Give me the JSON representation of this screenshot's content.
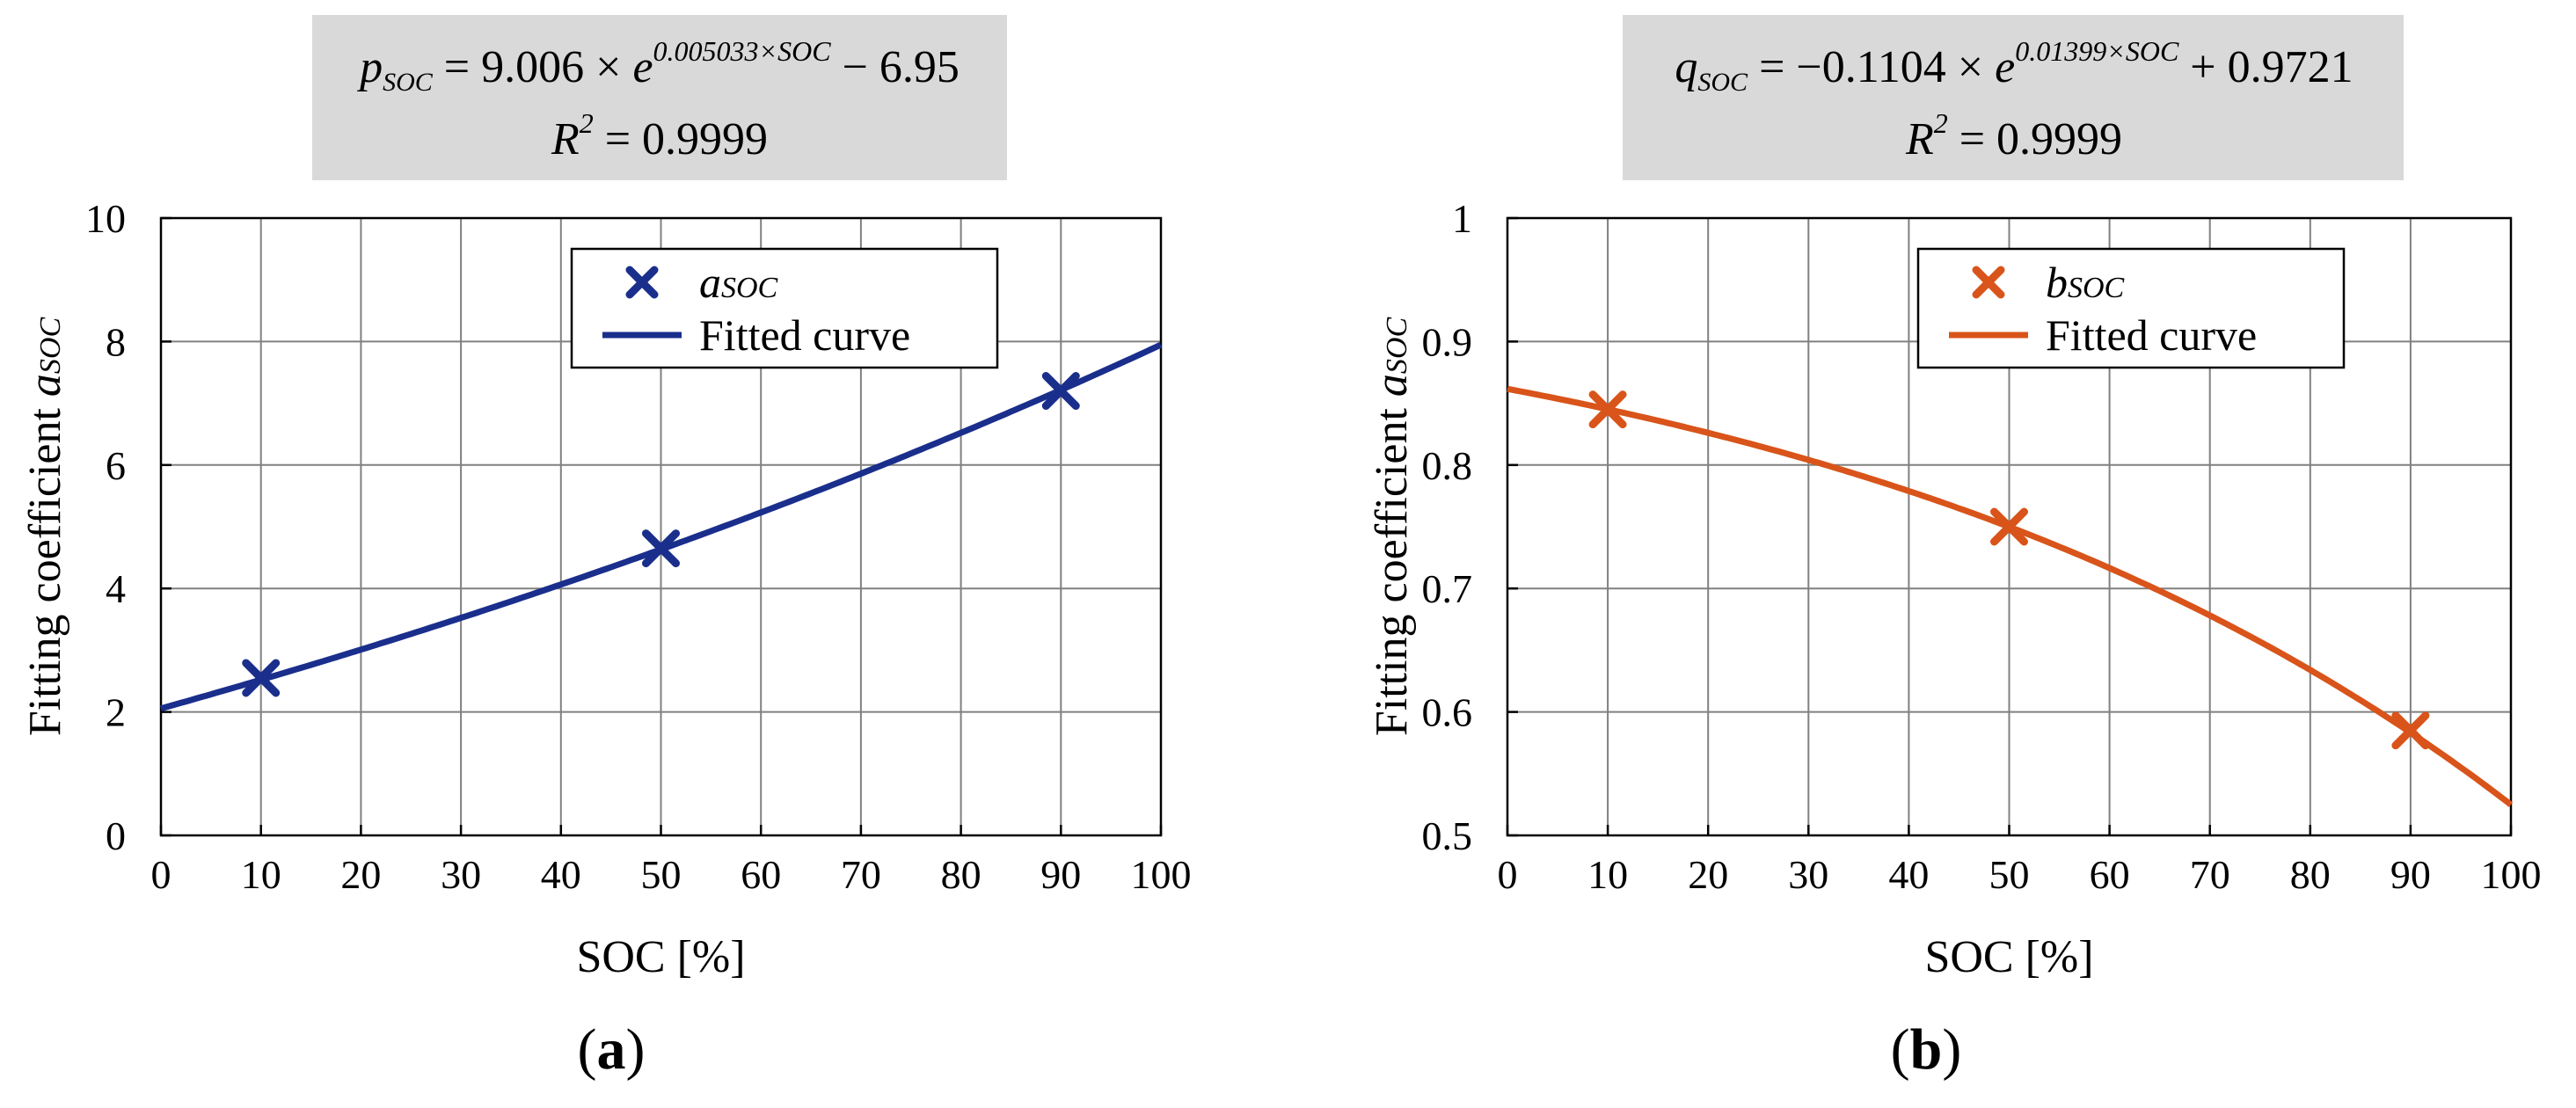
{
  "chart_data": [
    {
      "type": "line",
      "panel": "a",
      "panel_label": {
        "open": "(",
        "letter": "a",
        "close": ")"
      },
      "equation": {
        "line1_lhs": "p",
        "line1_lhs_sub": "SOC",
        "line1_rhs_before": "= 9.006 × ",
        "line1_e": "e",
        "line1_exponent": "0.005033×SOC",
        "line1_rhs_after": " − 6.95",
        "line2_lhs": "R",
        "line2_sup": "2",
        "line2_rhs": " = 0.9999"
      },
      "xlabel": "SOC [%]",
      "ylabel": {
        "text": "Fitting coefficient ",
        "italic": "a",
        "sub": "SOC"
      },
      "xlim": [
        0,
        100
      ],
      "ylim": [
        0,
        10
      ],
      "xticks": [
        0,
        10,
        20,
        30,
        40,
        50,
        60,
        70,
        80,
        90,
        100
      ],
      "yticks": [
        0,
        2,
        4,
        6,
        8,
        10
      ],
      "grid": true,
      "color": "#1a2e8c",
      "fit": {
        "a": 9.006,
        "b": 0.005033,
        "c": -6.95
      },
      "points": {
        "x": [
          10,
          50,
          90
        ],
        "y": [
          2.55,
          4.65,
          7.2
        ]
      },
      "legend": {
        "placement": "top-right",
        "marker_label_italic": "a",
        "marker_label_sub": "SOC",
        "line_label": "Fitted curve"
      }
    },
    {
      "type": "line",
      "panel": "b",
      "panel_label": {
        "open": "(",
        "letter": "b",
        "close": ")"
      },
      "equation": {
        "line1_lhs": "q",
        "line1_lhs_sub": "SOC",
        "line1_rhs_before": "= −0.1104 × ",
        "line1_e": "e",
        "line1_exponent": "0.01399×SOC",
        "line1_rhs_after": " + 0.9721",
        "line2_lhs": "R",
        "line2_sup": "2",
        "line2_rhs": " = 0.9999"
      },
      "xlabel": "SOC [%]",
      "ylabel": {
        "text": "Fitting coefficient ",
        "italic": "a",
        "sub": "SOC"
      },
      "xlim": [
        0,
        100
      ],
      "ylim": [
        0.5,
        1
      ],
      "xticks": [
        0,
        10,
        20,
        30,
        40,
        50,
        60,
        70,
        80,
        90,
        100
      ],
      "yticks": [
        0.5,
        0.6,
        0.7,
        0.8,
        0.9,
        1
      ],
      "ytick_labels": [
        "0.5",
        "0.6",
        "0.7",
        "0.8",
        "0.9",
        "1"
      ],
      "grid": true,
      "color": "#d9541a",
      "fit": {
        "a": -0.1104,
        "b": 0.01399,
        "c": 0.9721
      },
      "points": {
        "x": [
          10,
          50,
          90
        ],
        "y": [
          0.845,
          0.75,
          0.585
        ]
      },
      "legend": {
        "placement": "top-right",
        "marker_label_italic": "b",
        "marker_label_sub": "SOC",
        "line_label": "Fitted curve"
      }
    }
  ]
}
